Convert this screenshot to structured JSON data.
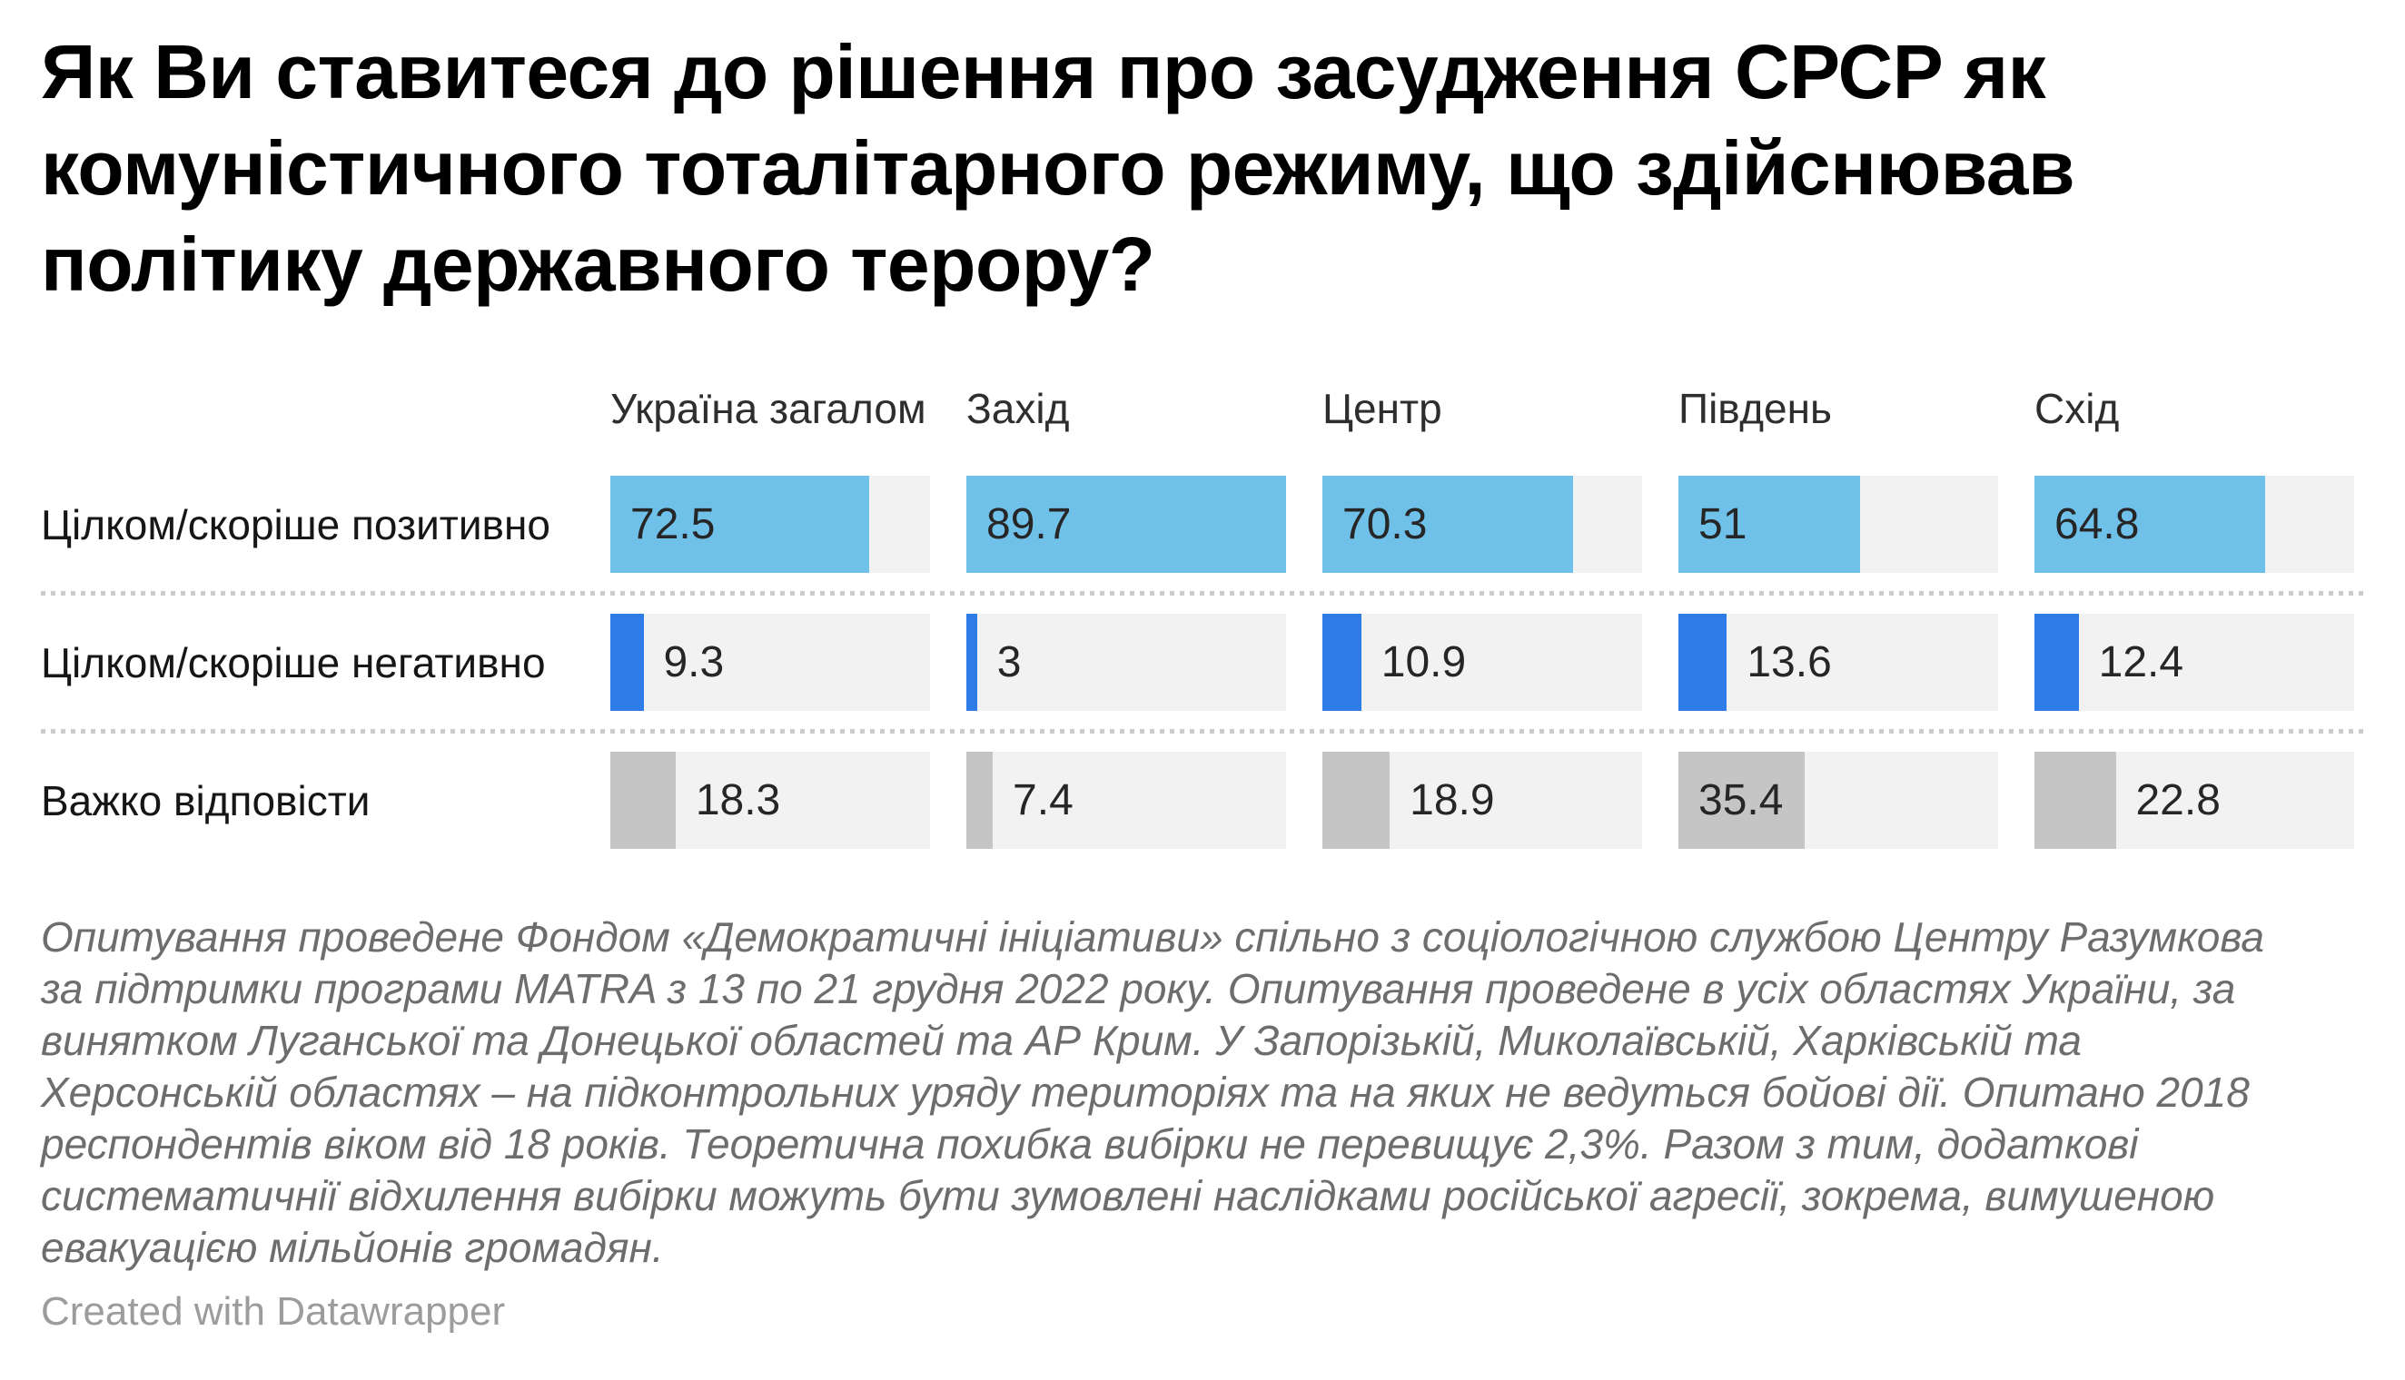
{
  "title": "Як Ви ставитеся до рішення про засудження СРСР як комуністичного тоталітарного режиму, що здійснював політику державного терору?",
  "columns": [
    "Україна загалом",
    "Захід",
    "Центр",
    "Південь",
    "Схід"
  ],
  "rows": [
    {
      "label": "Цілком/скоріше позитивно",
      "color": "#70c1ea",
      "values": [
        72.5,
        89.7,
        70.3,
        51,
        64.8
      ]
    },
    {
      "label": "Цілком/скоріше негативно",
      "color": "#2e7ce6",
      "values": [
        9.3,
        3,
        10.9,
        13.6,
        12.4
      ]
    },
    {
      "label": "Важко відповісти",
      "color": "#c5c5c5",
      "values": [
        18.3,
        7.4,
        18.9,
        35.4,
        22.8
      ]
    }
  ],
  "track_color": "#f2f2f2",
  "notes_lines": [
    "Опитування проведене Фондом «Демократичні ініціативи» спільно з соціологічною службою Центру Разумкова",
    "за підтримки програми MATRA з 13 по 21 грудня 2022 року. Опитування проведене в усіх областях України, за",
    "винятком Луганської та Донецької областей та АР Крим. У Запорізькій, Миколаївській, Харківській та",
    "Херсонській областях – на підконтрольних уряду територіях та на яких не ведуться бойові дії. Опитано 2018",
    "респондентів віком від 18 років. Теоретична похибка вибірки не перевищує 2,3%. Разом з тим, додаткові",
    "систематичнії відхилення вибірки можуть бути зумовлені наслідками російської агресії, зокрема, вимушеною",
    "евакуацією мільйонів громадян."
  ],
  "attribution": "Created with Datawrapper",
  "chart_data": {
    "type": "bar",
    "orientation": "horizontal",
    "categories": [
      "Україна загалом",
      "Захід",
      "Центр",
      "Південь",
      "Схід"
    ],
    "series": [
      {
        "name": "Цілком/скоріше позитивно",
        "values": [
          72.5,
          89.7,
          70.3,
          51,
          64.8
        ]
      },
      {
        "name": "Цілком/скоріше негативно",
        "values": [
          9.3,
          3,
          10.9,
          13.6,
          12.4
        ]
      },
      {
        "name": "Важко відповісти",
        "values": [
          18.3,
          7.4,
          18.9,
          35.4,
          22.8
        ]
      }
    ],
    "title": "Як Ви ставитеся до рішення про засудження СРСР як комуністичного тоталітарного режиму, що здійснював політику державного терору?",
    "xlabel": "",
    "ylabel": "",
    "xlim": [
      0,
      89.7
    ],
    "grid": false,
    "legend_position": "none",
    "colors": {
      "positive": "#70c1ea",
      "negative": "#2e7ce6",
      "undecided": "#c5c5c5"
    }
  }
}
